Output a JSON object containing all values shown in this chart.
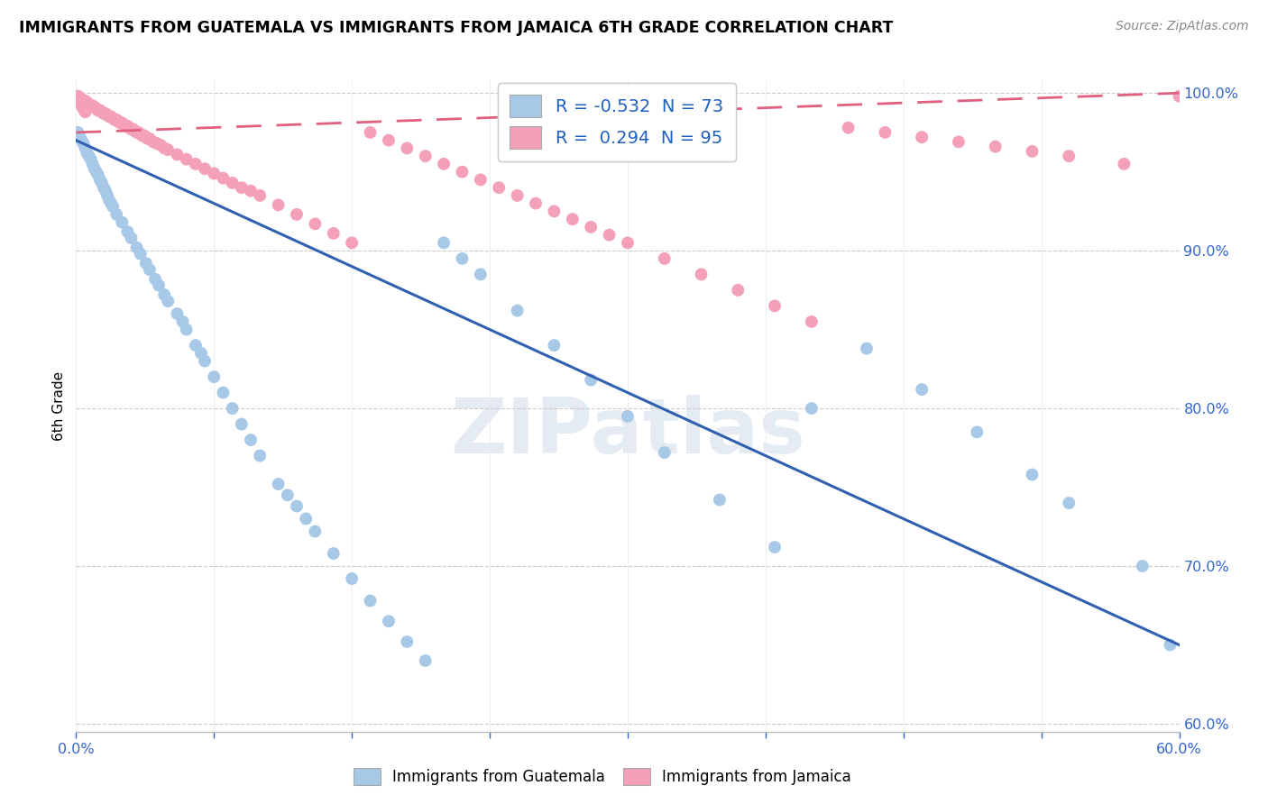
{
  "title": "IMMIGRANTS FROM GUATEMALA VS IMMIGRANTS FROM JAMAICA 6TH GRADE CORRELATION CHART",
  "source": "Source: ZipAtlas.com",
  "ylabel": "6th Grade",
  "xmin": 0.0,
  "xmax": 0.6,
  "ymin": 0.595,
  "ymax": 1.008,
  "r_guat": -0.532,
  "n_guat": 73,
  "r_jam": 0.294,
  "n_jam": 95,
  "blue_scatter": "#a8c8e8",
  "pink_scatter": "#f4a0b8",
  "blue_line": "#3060b0",
  "pink_line": "#e06080",
  "watermark_color": "#c8d8e8",
  "yticks": [
    0.6,
    0.7,
    0.8,
    0.9,
    1.0
  ],
  "xticks_labels": [
    "0.0%",
    "",
    "",
    "",
    "",
    "",
    "",
    "",
    "60.0%"
  ],
  "legend_text_color": "#2060c0",
  "guat_x": [
    0.001,
    0.002,
    0.003,
    0.004,
    0.005,
    0.006,
    0.007,
    0.008,
    0.009,
    0.01,
    0.011,
    0.012,
    0.013,
    0.014,
    0.015,
    0.016,
    0.017,
    0.018,
    0.019,
    0.02,
    0.022,
    0.025,
    0.028,
    0.03,
    0.033,
    0.035,
    0.038,
    0.04,
    0.043,
    0.045,
    0.048,
    0.05,
    0.055,
    0.058,
    0.06,
    0.065,
    0.068,
    0.07,
    0.075,
    0.08,
    0.085,
    0.09,
    0.095,
    0.1,
    0.11,
    0.115,
    0.12,
    0.125,
    0.13,
    0.14,
    0.15,
    0.16,
    0.17,
    0.18,
    0.19,
    0.2,
    0.21,
    0.22,
    0.24,
    0.26,
    0.28,
    0.3,
    0.32,
    0.35,
    0.38,
    0.4,
    0.43,
    0.46,
    0.49,
    0.52,
    0.54,
    0.58,
    0.595
  ],
  "guat_y": [
    0.975,
    0.972,
    0.97,
    0.968,
    0.965,
    0.962,
    0.96,
    0.958,
    0.955,
    0.952,
    0.95,
    0.948,
    0.945,
    0.943,
    0.94,
    0.938,
    0.935,
    0.932,
    0.93,
    0.928,
    0.923,
    0.918,
    0.912,
    0.908,
    0.902,
    0.898,
    0.892,
    0.888,
    0.882,
    0.878,
    0.872,
    0.868,
    0.86,
    0.855,
    0.85,
    0.84,
    0.835,
    0.83,
    0.82,
    0.81,
    0.8,
    0.79,
    0.78,
    0.77,
    0.752,
    0.745,
    0.738,
    0.73,
    0.722,
    0.708,
    0.692,
    0.678,
    0.665,
    0.652,
    0.64,
    0.905,
    0.895,
    0.885,
    0.862,
    0.84,
    0.818,
    0.795,
    0.772,
    0.742,
    0.712,
    0.8,
    0.838,
    0.812,
    0.785,
    0.758,
    0.74,
    0.7,
    0.65
  ],
  "jam_x": [
    0.001,
    0.002,
    0.003,
    0.004,
    0.005,
    0.006,
    0.007,
    0.008,
    0.009,
    0.01,
    0.011,
    0.012,
    0.013,
    0.014,
    0.015,
    0.016,
    0.017,
    0.018,
    0.019,
    0.02,
    0.021,
    0.022,
    0.023,
    0.024,
    0.025,
    0.026,
    0.027,
    0.028,
    0.029,
    0.03,
    0.031,
    0.032,
    0.033,
    0.034,
    0.035,
    0.036,
    0.037,
    0.038,
    0.039,
    0.04,
    0.042,
    0.044,
    0.046,
    0.048,
    0.05,
    0.055,
    0.06,
    0.065,
    0.07,
    0.075,
    0.08,
    0.085,
    0.09,
    0.095,
    0.1,
    0.11,
    0.12,
    0.13,
    0.14,
    0.15,
    0.16,
    0.17,
    0.18,
    0.19,
    0.2,
    0.21,
    0.22,
    0.23,
    0.24,
    0.25,
    0.26,
    0.27,
    0.28,
    0.29,
    0.3,
    0.32,
    0.34,
    0.36,
    0.38,
    0.4,
    0.42,
    0.44,
    0.46,
    0.48,
    0.5,
    0.52,
    0.54,
    0.57,
    0.001,
    0.002,
    0.003,
    0.003,
    0.004,
    0.005,
    0.6
  ],
  "jam_y": [
    0.998,
    0.997,
    0.996,
    0.995,
    0.995,
    0.994,
    0.993,
    0.992,
    0.992,
    0.991,
    0.99,
    0.989,
    0.989,
    0.988,
    0.987,
    0.987,
    0.986,
    0.985,
    0.985,
    0.984,
    0.983,
    0.983,
    0.982,
    0.981,
    0.981,
    0.98,
    0.979,
    0.979,
    0.978,
    0.977,
    0.977,
    0.976,
    0.975,
    0.975,
    0.974,
    0.973,
    0.973,
    0.972,
    0.971,
    0.971,
    0.969,
    0.968,
    0.967,
    0.965,
    0.964,
    0.961,
    0.958,
    0.955,
    0.952,
    0.949,
    0.946,
    0.943,
    0.94,
    0.938,
    0.935,
    0.929,
    0.923,
    0.917,
    0.911,
    0.905,
    0.975,
    0.97,
    0.965,
    0.96,
    0.955,
    0.95,
    0.945,
    0.94,
    0.935,
    0.93,
    0.925,
    0.92,
    0.915,
    0.91,
    0.905,
    0.895,
    0.885,
    0.875,
    0.865,
    0.855,
    0.978,
    0.975,
    0.972,
    0.969,
    0.966,
    0.963,
    0.96,
    0.955,
    0.998,
    0.996,
    0.994,
    0.992,
    0.99,
    0.988,
    0.998
  ]
}
